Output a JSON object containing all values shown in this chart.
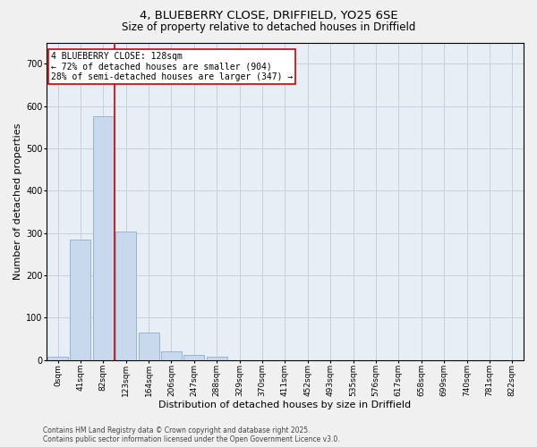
{
  "title1": "4, BLUEBERRY CLOSE, DRIFFIELD, YO25 6SE",
  "title2": "Size of property relative to detached houses in Driffield",
  "xlabel": "Distribution of detached houses by size in Driffield",
  "ylabel": "Number of detached properties",
  "bar_values": [
    8,
    285,
    575,
    303,
    65,
    20,
    13,
    9,
    0,
    0,
    0,
    0,
    0,
    0,
    0,
    0,
    0,
    0,
    0,
    0,
    0
  ],
  "bar_labels": [
    "0sqm",
    "41sqm",
    "82sqm",
    "123sqm",
    "164sqm",
    "206sqm",
    "247sqm",
    "288sqm",
    "329sqm",
    "370sqm",
    "411sqm",
    "452sqm",
    "493sqm",
    "535sqm",
    "576sqm",
    "617sqm",
    "658sqm",
    "699sqm",
    "740sqm",
    "781sqm",
    "822sqm"
  ],
  "bar_color": "#c8d9ee",
  "bar_edge_color": "#8aaecf",
  "grid_color": "#c8d0de",
  "bg_color": "#e8eef6",
  "vline_color": "#cc0000",
  "vline_x": 2.5,
  "annotation_title": "4 BLUEBERRY CLOSE: 128sqm",
  "annotation_line1": "← 72% of detached houses are smaller (904)",
  "annotation_line2": "28% of semi-detached houses are larger (347) →",
  "annotation_box_facecolor": "#ffffff",
  "annotation_box_edgecolor": "#cc0000",
  "ylim": [
    0,
    750
  ],
  "yticks": [
    0,
    100,
    200,
    300,
    400,
    500,
    600,
    700
  ],
  "footnote1": "Contains HM Land Registry data © Crown copyright and database right 2025.",
  "footnote2": "Contains public sector information licensed under the Open Government Licence v3.0.",
  "title_fontsize": 9.5,
  "subtitle_fontsize": 8.5,
  "tick_fontsize": 6.5,
  "xlabel_fontsize": 8,
  "ylabel_fontsize": 8,
  "footnote_fontsize": 5.5
}
